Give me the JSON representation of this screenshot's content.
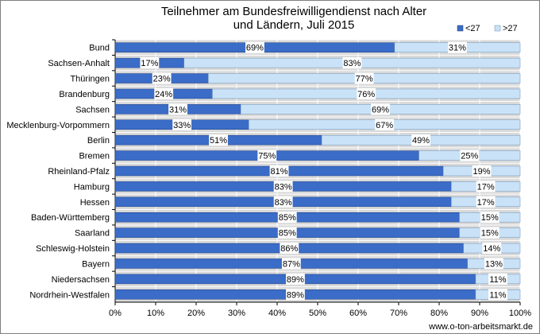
{
  "chart_data": {
    "type": "bar",
    "orientation": "horizontal",
    "stacked": true,
    "title_lines": [
      "Teilnehmer am Bundesfreiwilligendienst nach Alter",
      "und Ländern, Juli 2015"
    ],
    "categories": [
      "Bund",
      "Sachsen-Anhalt",
      "Thüringen",
      "Brandenburg",
      "Sachsen",
      "Mecklenburg-Vorpommern",
      "Berlin",
      "Bremen",
      "Rheinland-Pfalz",
      "Hamburg",
      "Hessen",
      "Baden-Württemberg",
      "Saarland",
      "Schleswig-Holstein",
      "Bayern",
      "Niedersachsen",
      "Nordrhein-Westfalen"
    ],
    "series": [
      {
        "name": "<27",
        "color": "#3a6cc8",
        "values": [
          69,
          17,
          23,
          24,
          31,
          33,
          51,
          75,
          81,
          83,
          83,
          85,
          85,
          86,
          87,
          89,
          89
        ]
      },
      {
        "name": ">27",
        "color": "#c9e2f7",
        "values": [
          31,
          83,
          77,
          76,
          69,
          67,
          49,
          25,
          19,
          17,
          17,
          15,
          15,
          14,
          13,
          11,
          11
        ]
      }
    ],
    "value_labels": {
      "<27": [
        "69%",
        "17%",
        "23%",
        "24%",
        "31%",
        "33%",
        "51%",
        "75%",
        "81%",
        "83%",
        "83%",
        "85%",
        "85%",
        "86%",
        "87%",
        "89%",
        "89%"
      ],
      ">27": [
        "31%",
        "83%",
        "77%",
        "76%",
        "69%",
        "67%",
        "49%",
        "25%",
        "19%",
        "17%",
        "17%",
        "15%",
        "15%",
        "14%",
        "13%",
        "11%",
        "11%"
      ]
    },
    "xlim": [
      0,
      100
    ],
    "x_ticks": [
      "0%",
      "10%",
      "20%",
      "30%",
      "40%",
      "50%",
      "60%",
      "70%",
      "80%",
      "90%",
      "100%"
    ],
    "legend_position": "top-right",
    "grid": true,
    "plot_background": "#d9d9d9"
  },
  "source": "www.o-ton-arbeitsmarkt.de"
}
